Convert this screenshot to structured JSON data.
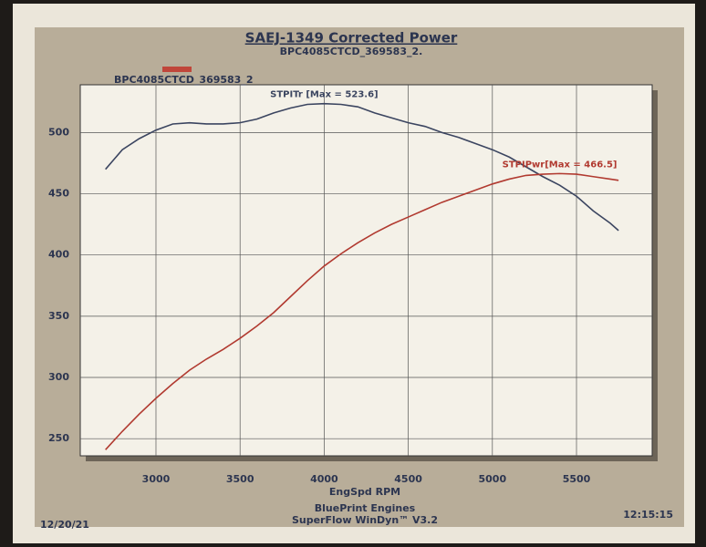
{
  "chart_data": {
    "type": "line",
    "title": "SAEJ-1349 Corrected Power",
    "subtitle": "BPC4085CTCD_369583_2.",
    "legend": {
      "label": "BPC4085CTCD_369583_2",
      "color": "#c0463a"
    },
    "x_label": "EngSpd RPM",
    "footer": [
      "BluePrint Engines",
      "SuperFlow WinDyn™ V3.2"
    ],
    "date": "12/20/21",
    "time": "12:15:15",
    "x": [
      2700,
      2800,
      2900,
      3000,
      3100,
      3200,
      3300,
      3400,
      3500,
      3600,
      3700,
      3800,
      3900,
      4000,
      4100,
      4200,
      4300,
      4400,
      4500,
      4600,
      4700,
      4800,
      4900,
      5000,
      5100,
      5200,
      5300,
      5400,
      5500,
      5600,
      5700,
      5750
    ],
    "series": [
      {
        "annotation": "STPITr [Max = 523.6]",
        "color": "#3b4560",
        "values": [
          470,
          486,
          495,
          502,
          507,
          508,
          507,
          507,
          508,
          511,
          516,
          520,
          523,
          523.6,
          523,
          521,
          516,
          512,
          508,
          505,
          500,
          496,
          491,
          486,
          480,
          472,
          464,
          457,
          448,
          436,
          426,
          420
        ]
      },
      {
        "annotation": "STPIPwr[Max = 466.5]",
        "color": "#b13a30",
        "values": [
          241,
          256,
          270,
          283,
          295,
          306,
          315,
          323,
          332,
          342,
          353,
          366,
          379,
          391,
          401,
          410,
          418,
          425,
          431,
          437,
          443,
          448,
          453,
          458,
          462,
          465,
          466,
          466.5,
          466,
          464,
          462,
          461
        ]
      }
    ],
    "xlim": [
      2550,
      5950
    ],
    "xticks": [
      3000,
      3500,
      4000,
      4500,
      5000,
      5500
    ],
    "ylim": [
      236,
      539
    ],
    "yticks": [
      250,
      300,
      350,
      400,
      450,
      500
    ],
    "grid": true
  }
}
